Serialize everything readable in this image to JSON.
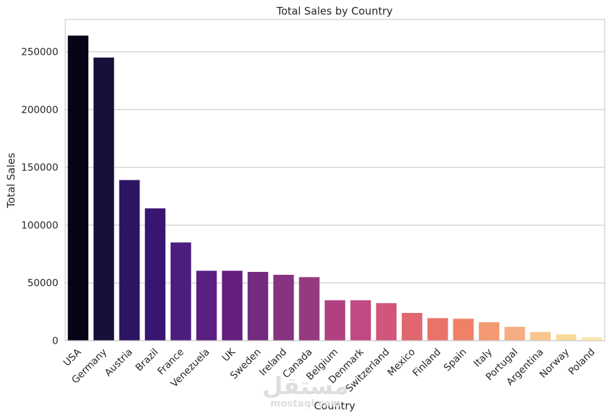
{
  "chart_data": {
    "type": "bar",
    "title": "Total Sales by Country",
    "xlabel": "Country",
    "ylabel": "Total Sales",
    "ylim": [
      0,
      278000
    ],
    "yticks": [
      0,
      50000,
      100000,
      150000,
      200000,
      250000
    ],
    "grid": "horizontal",
    "categories": [
      "USA",
      "Germany",
      "Austria",
      "Brazil",
      "France",
      "Venezuela",
      "UK",
      "Sweden",
      "Ireland",
      "Canada",
      "Belgium",
      "Denmark",
      "Switzerland",
      "Mexico",
      "Finland",
      "Spain",
      "Italy",
      "Portugal",
      "Argentina",
      "Norway",
      "Poland"
    ],
    "values": [
      264000,
      245000,
      139000,
      114500,
      85000,
      60500,
      60500,
      59500,
      57000,
      55000,
      35000,
      35000,
      32500,
      24000,
      19500,
      19000,
      16000,
      12000,
      7500,
      5500,
      3000
    ],
    "colors": [
      "#060517",
      "#17103a",
      "#2c1663",
      "#391572",
      "#4e1d80",
      "#5a1f7f",
      "#651f81",
      "#722b7f",
      "#863380",
      "#953a7f",
      "#b04180",
      "#c24981",
      "#d2557c",
      "#e0666f",
      "#ea7368",
      "#ee8166",
      "#f39a73",
      "#f6ad83",
      "#f8c58d",
      "#fbd999",
      "#fde8ad"
    ]
  },
  "watermark": {
    "arabic": "مستقل",
    "latin": "mostaql.com"
  }
}
